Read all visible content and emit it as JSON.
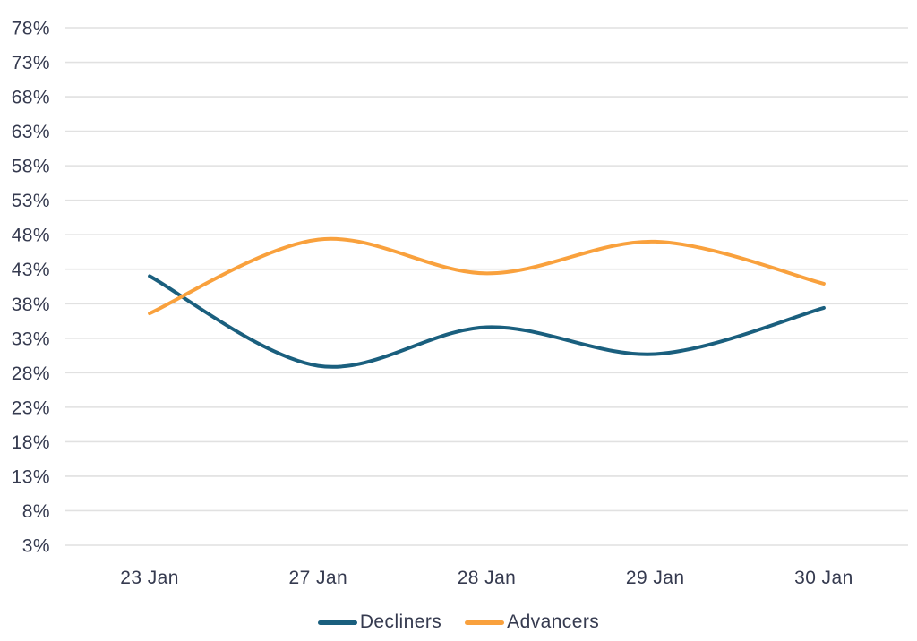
{
  "chart_data": {
    "type": "line",
    "title": "",
    "categories": [
      "23 Jan",
      "27 Jan",
      "28 Jan",
      "29 Jan",
      "30 Jan"
    ],
    "series": [
      {
        "name": "Decliners",
        "color": "#1A5F7E",
        "values": [
          42.0,
          29.0,
          34.6,
          30.7,
          37.4
        ]
      },
      {
        "name": "Advancers",
        "color": "#F9A13D",
        "values": [
          36.6,
          47.3,
          42.4,
          47.0,
          40.9
        ]
      }
    ],
    "y_ticks": [
      78,
      73,
      68,
      63,
      58,
      53,
      48,
      43,
      38,
      33,
      28,
      23,
      18,
      13,
      8,
      3
    ],
    "y_tick_suffix": "%",
    "ylim": [
      3,
      78
    ],
    "grid": "horizontal",
    "legend_position": "bottom",
    "curve": "smooth"
  },
  "colors": {
    "background": "#FFFFFF",
    "gridline": "#E1E1E1",
    "axis_text": "#353A4F"
  }
}
